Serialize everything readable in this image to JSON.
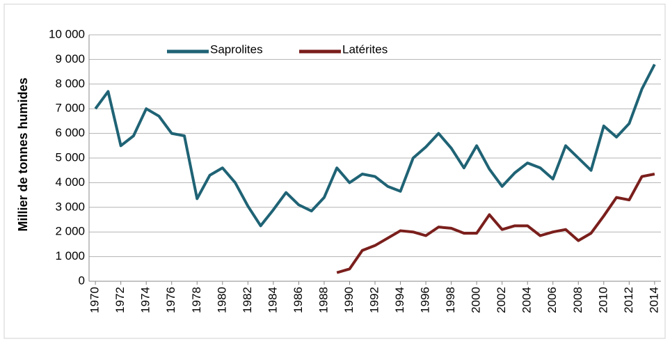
{
  "chart_data": {
    "type": "line",
    "y_label": "Millier de tonnes humides",
    "x": [
      1970,
      1971,
      1972,
      1973,
      1974,
      1975,
      1976,
      1977,
      1978,
      1979,
      1980,
      1981,
      1982,
      1983,
      1984,
      1985,
      1986,
      1987,
      1988,
      1989,
      1990,
      1991,
      1992,
      1993,
      1994,
      1995,
      1996,
      1997,
      1998,
      1999,
      2000,
      2001,
      2002,
      2003,
      2004,
      2005,
      2006,
      2007,
      2008,
      2009,
      2010,
      2011,
      2012,
      2013,
      2014
    ],
    "xlim": [
      1969.5,
      2014.5
    ],
    "xticks": [
      1970,
      1972,
      1974,
      1976,
      1978,
      1980,
      1982,
      1984,
      1986,
      1988,
      1990,
      1992,
      1994,
      1996,
      1998,
      2000,
      2002,
      2004,
      2006,
      2008,
      2010,
      2012,
      2014
    ],
    "ylim": [
      0,
      10000
    ],
    "yticks": [
      0,
      {
        "value": 1000,
        "label": "1 000"
      },
      {
        "value": 2000,
        "label": "2 000"
      },
      {
        "value": 3000,
        "label": "3 000"
      },
      {
        "value": 4000,
        "label": "4 000"
      },
      {
        "value": 5000,
        "label": "5 000"
      },
      {
        "value": 6000,
        "label": "6 000"
      },
      {
        "value": 7000,
        "label": "7 000"
      },
      {
        "value": 8000,
        "label": "8 000"
      },
      {
        "value": 9000,
        "label": "9 000"
      },
      {
        "value": 10000,
        "label": "10 000"
      }
    ],
    "grid": true,
    "legend": "top",
    "series": [
      {
        "name": "Saprolites",
        "color": "#1f6375",
        "values": [
          7000,
          7700,
          5500,
          5900,
          7000,
          6700,
          6000,
          5900,
          3350,
          4300,
          4600,
          4000,
          3050,
          2250,
          2900,
          3600,
          3100,
          2850,
          3400,
          4600,
          4000,
          4350,
          4250,
          3850,
          3650,
          5000,
          5450,
          6000,
          5400,
          4600,
          5500,
          4550,
          3850,
          4400,
          4800,
          4600,
          4150,
          5500,
          5000,
          4500,
          6300,
          5850,
          6400,
          7800,
          8800
        ]
      },
      {
        "name": "Latérites",
        "color": "#7a1f1c",
        "values": [
          null,
          null,
          null,
          null,
          null,
          null,
          null,
          null,
          null,
          null,
          null,
          null,
          null,
          null,
          null,
          null,
          null,
          null,
          null,
          350,
          500,
          1250,
          1450,
          1750,
          2050,
          2000,
          1850,
          2200,
          2150,
          1950,
          1950,
          2700,
          2100,
          2250,
          2250,
          1850,
          2000,
          2100,
          1650,
          1950,
          2650,
          3400,
          3300,
          4250,
          4350
        ]
      }
    ]
  }
}
